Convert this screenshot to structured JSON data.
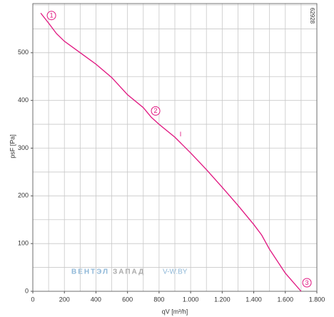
{
  "chart_data": {
    "type": "line",
    "x_label": "qV [m³/h]",
    "y_label": "psF [Pa]",
    "code": "62928",
    "watermark": [
      "ВЕНТЭЛ",
      "ЗАПАД",
      "V-W.BY"
    ],
    "x": [
      50,
      100,
      150,
      200,
      300,
      400,
      500,
      600,
      700,
      750,
      800,
      900,
      1000,
      1100,
      1200,
      1300,
      1400,
      1450,
      1500,
      1600,
      1700
    ],
    "series": [
      {
        "color": "#e0147f",
        "values": [
          583,
          562,
          540,
          524,
          500,
          476,
          448,
          412,
          385,
          365,
          350,
          323,
          290,
          255,
          218,
          180,
          140,
          118,
          88,
          38,
          0
        ]
      }
    ],
    "annotations": [
      {
        "text": "1",
        "x": 118,
        "y": 578
      },
      {
        "text": "2",
        "x": 778,
        "y": 378
      },
      {
        "text": "3",
        "x": 1737,
        "y": 18
      },
      {
        "text": "I",
        "x": 936,
        "y": 329
      }
    ],
    "xlim": [
      0,
      1800
    ],
    "ylim": [
      0,
      603
    ],
    "xticks": [
      0,
      200,
      400,
      600,
      800,
      {
        "value": 1000,
        "label": "1.000"
      },
      {
        "value": 1200,
        "label": "1.200"
      },
      {
        "value": 1400,
        "label": "1.400"
      },
      {
        "value": 1600,
        "label": "1.600"
      },
      {
        "value": 1800,
        "label": "1.800"
      }
    ],
    "yticks": [
      0,
      100,
      200,
      300,
      400,
      500
    ],
    "xgrid": [
      0,
      100,
      200,
      300,
      400,
      500,
      600,
      700,
      800,
      900,
      1000,
      1100,
      1200,
      1300,
      1400,
      1500,
      1600,
      1700,
      1800
    ],
    "ygrid": [
      0,
      50,
      100,
      150,
      200,
      250,
      300,
      350,
      400,
      450,
      500,
      550,
      600
    ],
    "grid": true
  }
}
